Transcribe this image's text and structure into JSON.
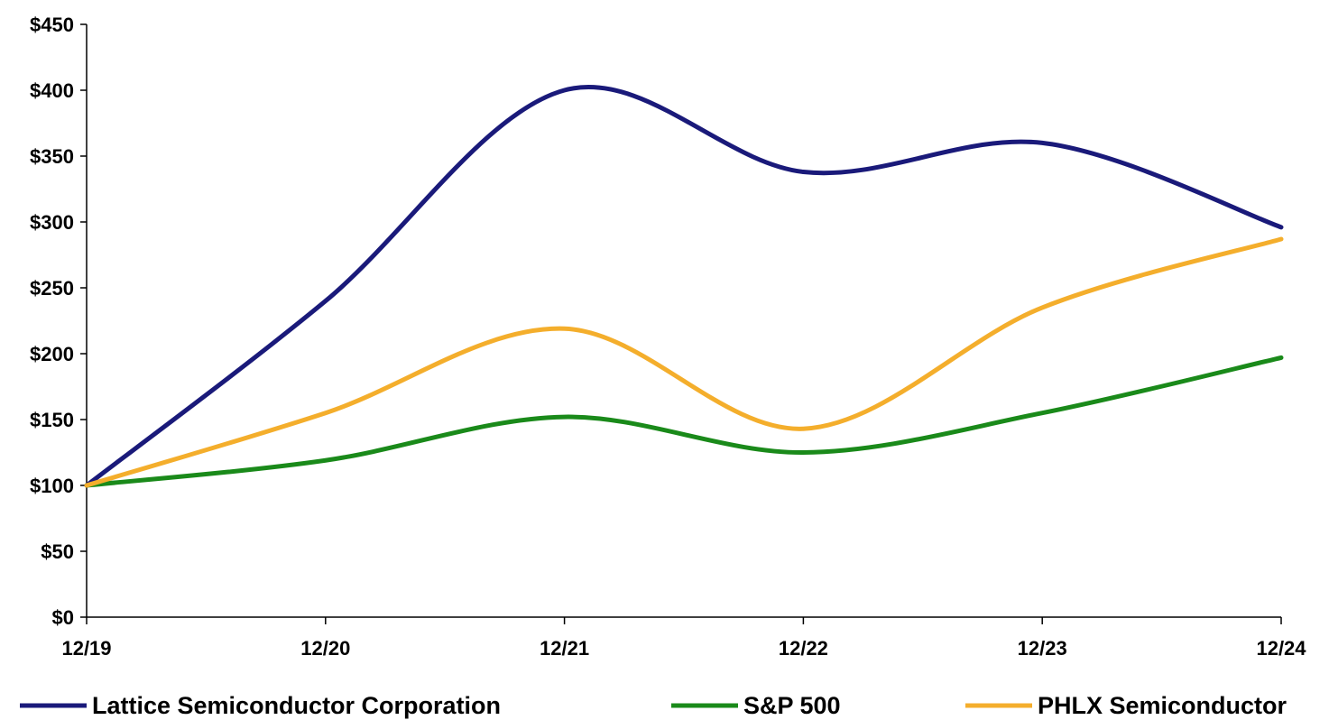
{
  "chart_data": {
    "type": "line",
    "categories": [
      "12/19",
      "12/20",
      "12/21",
      "12/22",
      "12/23",
      "12/24"
    ],
    "ylim": [
      0,
      450
    ],
    "yticks": [
      0,
      50,
      100,
      150,
      200,
      250,
      300,
      350,
      400,
      450
    ],
    "ytick_labels": [
      "$0",
      "$50",
      "$100",
      "$150",
      "$200",
      "$250",
      "$300",
      "$350",
      "$400",
      "$450"
    ],
    "grid": false,
    "legend_position": "bottom",
    "series": [
      {
        "name": "Lattice Semiconductor Corporation",
        "color": "#1a1a7a",
        "values": [
          100,
          240,
          400,
          338,
          360,
          296
        ]
      },
      {
        "name": "S&P 500",
        "color": "#1a8a1a",
        "values": [
          100,
          119,
          152,
          125,
          155,
          197
        ]
      },
      {
        "name": "PHLX Semiconductor",
        "color": "#f4ae2c",
        "values": [
          100,
          155,
          219,
          143,
          235,
          287
        ]
      }
    ]
  }
}
